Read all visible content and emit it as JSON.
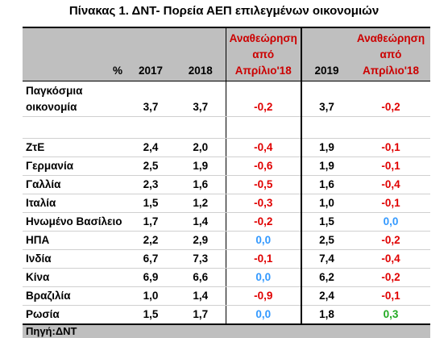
{
  "title": "Πίνακας 1. ΔΝΤ- Πορεία ΑΕΠ επιλεγμένων οικονομιών",
  "header": {
    "unit": "%",
    "y2017": "2017",
    "y2018": "2018",
    "revision_line1": "Αναθεώρηση",
    "revision_line2": "από",
    "revision_line3": "Απρίλιο'18",
    "y2019": "2019",
    "revision2_line1": "Αναθεώρηση",
    "revision2_line2": "από",
    "revision2_line3": "Απρίλιο'18"
  },
  "world": {
    "name_line1": "Παγκόσμια",
    "name_line2": "οικονομία",
    "v2017": "3,7",
    "v2018": "3,7",
    "rev2018": "-0,2",
    "v2019": "3,7",
    "rev2019": "-0,2"
  },
  "rows": [
    {
      "name": "ΖτΕ",
      "v2017": "2,4",
      "v2018": "2,0",
      "rev2018": "-0,4",
      "v2019": "1,9",
      "rev2019": "-0,1"
    },
    {
      "name": "Γερμανία",
      "v2017": "2,5",
      "v2018": "1,9",
      "rev2018": "-0,6",
      "v2019": "1,9",
      "rev2019": "-0,1"
    },
    {
      "name": "Γαλλία",
      "v2017": "2,3",
      "v2018": "1,6",
      "rev2018": "-0,5",
      "v2019": "1,6",
      "rev2019": "-0,4"
    },
    {
      "name": "Ιταλία",
      "v2017": "1,5",
      "v2018": "1,2",
      "rev2018": "-0,3",
      "v2019": "1,0",
      "rev2019": "-0,1"
    },
    {
      "name": "Ηνωμένο Βασίλειο",
      "v2017": "1,7",
      "v2018": "1,4",
      "rev2018": "-0,2",
      "v2019": "1,5",
      "rev2019": "0,0"
    },
    {
      "name": "ΗΠΑ",
      "v2017": "2,2",
      "v2018": "2,9",
      "rev2018": "0,0",
      "v2019": "2,5",
      "rev2019": "-0,2"
    },
    {
      "name": "Ινδία",
      "v2017": "6,7",
      "v2018": "7,3",
      "rev2018": "-0,1",
      "v2019": "7,4",
      "rev2019": "-0,4"
    },
    {
      "name": "Κίνα",
      "v2017": "6,9",
      "v2018": "6,6",
      "rev2018": "0,0",
      "v2019": "6,2",
      "rev2019": "-0,2"
    },
    {
      "name": "Βραζιλία",
      "v2017": "1,0",
      "v2018": "1,4",
      "rev2018": "-0,9",
      "v2019": "2,4",
      "rev2019": "-0,1"
    },
    {
      "name": "Ρωσία",
      "v2017": "1,5",
      "v2018": "1,7",
      "rev2018": "0,0",
      "v2019": "1,8",
      "rev2019": "0,3"
    }
  ],
  "source": "Πηγή:ΔΝΤ",
  "colors": {
    "negative": "#e00000",
    "zero": "#3399ff",
    "positive": "#22aa22",
    "header_bg": "#bfbfbf"
  }
}
